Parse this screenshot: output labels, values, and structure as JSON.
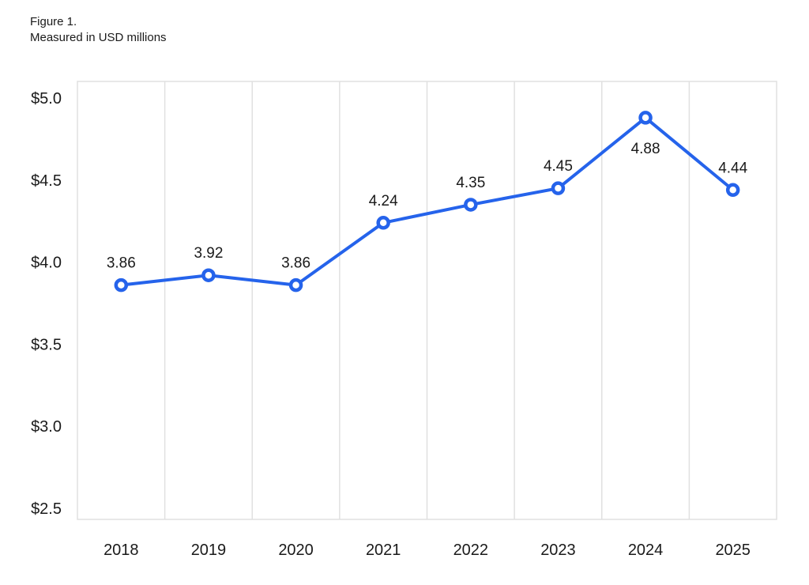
{
  "figure": {
    "title": "Figure 1.",
    "subtitle": "Measured in USD millions"
  },
  "chart_data": {
    "type": "line",
    "title": "Figure 1.",
    "subtitle": "Measured in USD millions",
    "x": [
      "2018",
      "2019",
      "2020",
      "2021",
      "2022",
      "2023",
      "2024",
      "2025"
    ],
    "series": [
      {
        "name": "USD millions",
        "values": [
          3.86,
          3.92,
          3.86,
          4.24,
          4.35,
          4.45,
          4.88,
          4.44
        ]
      }
    ],
    "data_labels": [
      "3.86",
      "3.92",
      "3.86",
      "4.24",
      "4.35",
      "4.45",
      "4.88",
      "4.44"
    ],
    "label_positions": [
      "above",
      "above",
      "above",
      "above",
      "above",
      "above",
      "below",
      "above"
    ],
    "y_ticks": [
      "$5.0",
      "$4.5",
      "$4.0",
      "$3.5",
      "$3.0",
      "$2.5"
    ],
    "y_tick_values": [
      5.0,
      4.5,
      4.0,
      3.5,
      3.0,
      2.5
    ],
    "ylim": [
      2.5,
      5.0
    ],
    "xlabel": "",
    "ylabel": "",
    "grid": "vertical-only",
    "legend": "none",
    "colors": {
      "line": "#2563eb",
      "marker_fill": "#ffffff",
      "marker_stroke": "#2563eb",
      "grid": "#e0e0e0",
      "text": "#1a1a1a"
    }
  }
}
